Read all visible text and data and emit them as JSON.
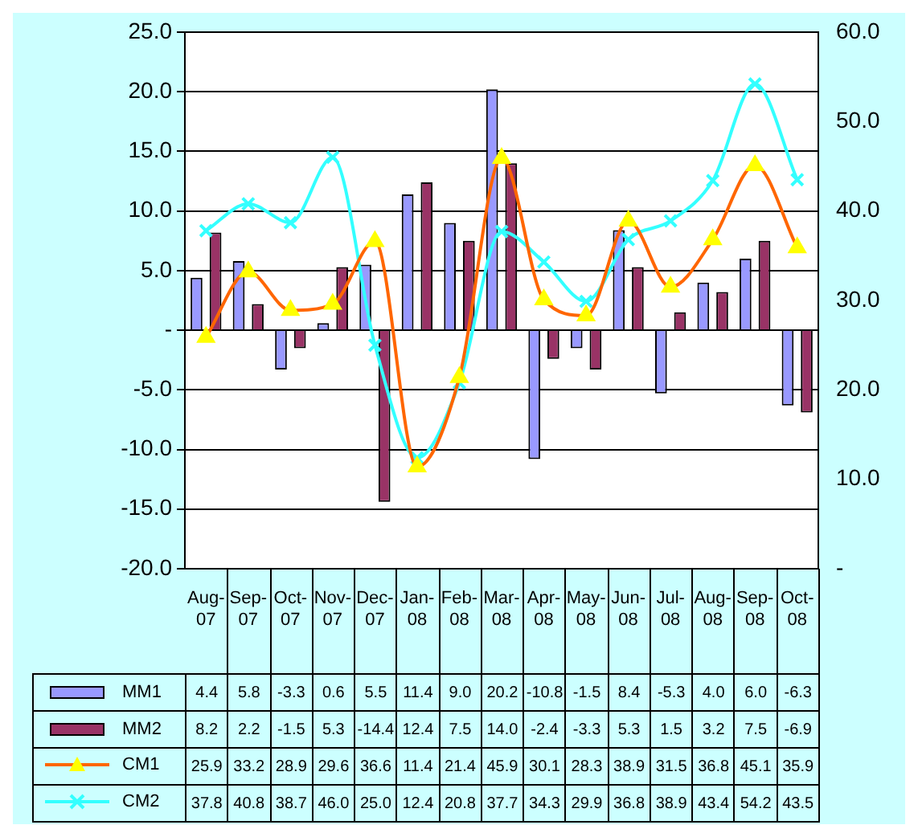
{
  "chart_data": {
    "type": "bar",
    "categories": [
      "Aug-07",
      "Sep-07",
      "Oct-07",
      "Nov-07",
      "Dec-07",
      "Jan-08",
      "Feb-08",
      "Mar-08",
      "Apr-08",
      "May-08",
      "Jun-08",
      "Jul-08",
      "Aug-08",
      "Sep-08",
      "Oct-08"
    ],
    "series": [
      {
        "name": "MM1",
        "color": "#9999ff",
        "values": [
          4.4,
          5.8,
          -3.3,
          0.6,
          5.5,
          11.4,
          9.0,
          20.2,
          -10.8,
          -1.5,
          8.4,
          -5.3,
          4.0,
          6.0,
          -6.3
        ],
        "value_labels": [
          "4.4",
          "5.8",
          "-3.3",
          "0.6",
          "5.5",
          "11.4",
          "9.0",
          "20.2",
          "-10.8",
          "-1.5",
          "8.4",
          "-5.3",
          "4.0",
          "6.0",
          "-6.3"
        ]
      },
      {
        "name": "MM2",
        "color": "#993366",
        "values": [
          8.2,
          2.2,
          -1.5,
          5.3,
          -14.4,
          12.4,
          7.5,
          14.0,
          -2.4,
          -3.3,
          5.3,
          1.5,
          3.2,
          7.5,
          -6.9
        ],
        "value_labels": [
          "8.2",
          "2.2",
          "-1.5",
          "5.3",
          "-14.4",
          "12.4",
          "7.5",
          "14.0",
          "-2.4",
          "-3.3",
          "5.3",
          "1.5",
          "3.2",
          "7.5",
          "-6.9"
        ]
      },
      {
        "name": "CM1",
        "type": "line",
        "axis": "y2",
        "color": "#ff6600",
        "marker": "triangle",
        "values": [
          25.9,
          33.2,
          28.9,
          29.6,
          36.6,
          11.4,
          21.4,
          45.9,
          30.1,
          28.3,
          38.9,
          31.5,
          36.8,
          45.1,
          35.9
        ],
        "value_labels": [
          "25.9",
          "33.2",
          "28.9",
          "29.6",
          "36.6",
          "11.4",
          "21.4",
          "45.9",
          "30.1",
          "28.3",
          "38.9",
          "31.5",
          "36.8",
          "45.1",
          "35.9"
        ]
      },
      {
        "name": "CM2",
        "type": "line",
        "axis": "y2",
        "color": "#33ffff",
        "marker": "cross",
        "values": [
          37.8,
          40.8,
          38.7,
          46.0,
          25.0,
          12.4,
          20.8,
          37.7,
          34.3,
          29.9,
          36.8,
          38.9,
          43.4,
          54.2,
          43.5
        ],
        "value_labels": [
          "37.8",
          "40.8",
          "38.7",
          "46.0",
          "25.0",
          "12.4",
          "20.8",
          "37.7",
          "34.3",
          "29.9",
          "36.8",
          "38.9",
          "43.4",
          "54.2",
          "43.5"
        ]
      }
    ],
    "ylim": [
      -20,
      25
    ],
    "yticks": [
      {
        "value": -20,
        "label": "-20.0"
      },
      {
        "value": -15,
        "label": "-15.0"
      },
      {
        "value": -10,
        "label": "-10.0"
      },
      {
        "value": -5,
        "label": "-5.0"
      },
      {
        "value": 0,
        "label": "-"
      },
      {
        "value": 5,
        "label": "5.0"
      },
      {
        "value": 10,
        "label": "10.0"
      },
      {
        "value": 15,
        "label": "15.0"
      },
      {
        "value": 20,
        "label": "20.0"
      },
      {
        "value": 25,
        "label": "25.0"
      }
    ],
    "y2lim": [
      0,
      60
    ],
    "y2ticks": [
      {
        "value": 0,
        "label": "-"
      },
      {
        "value": 10,
        "label": "10.0"
      },
      {
        "value": 20,
        "label": "20.0"
      },
      {
        "value": 30,
        "label": "30.0"
      },
      {
        "value": 40,
        "label": "40.0"
      },
      {
        "value": 50,
        "label": "50.0"
      },
      {
        "value": 60,
        "label": "60.0"
      }
    ],
    "grid": "y",
    "legend": "bottom left"
  }
}
